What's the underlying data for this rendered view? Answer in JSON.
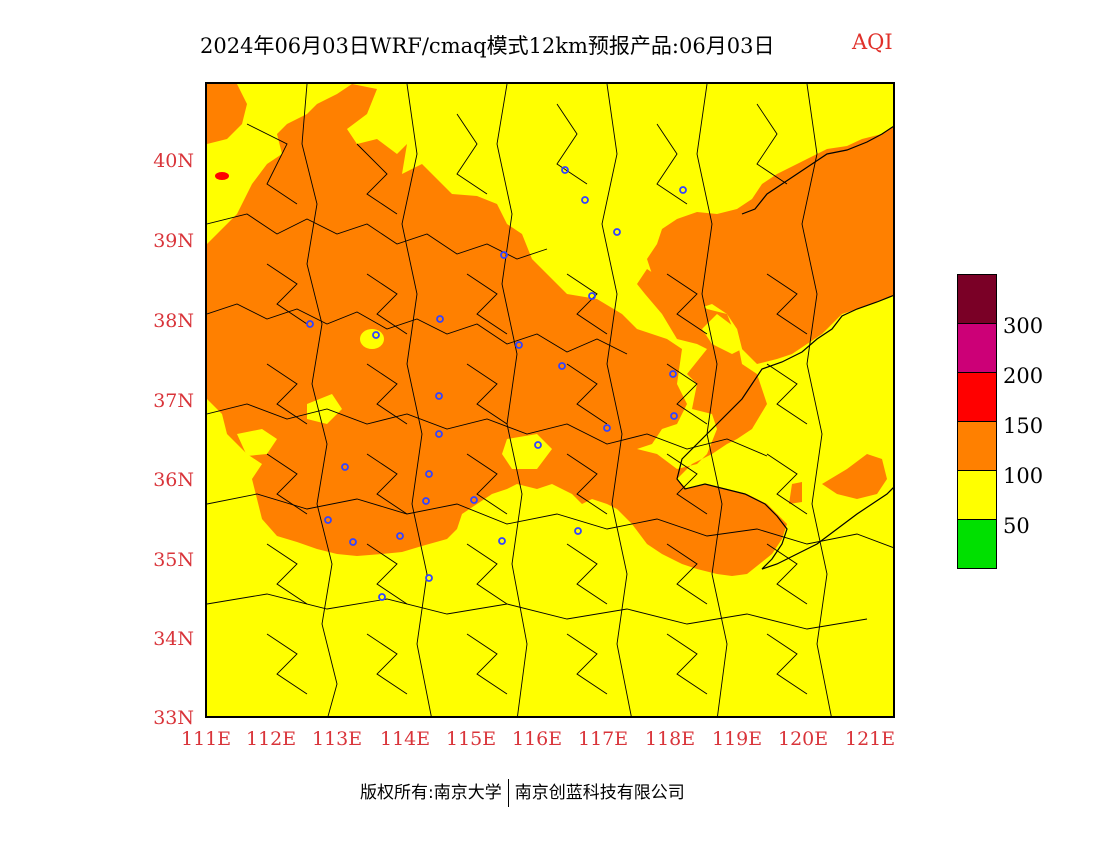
{
  "title": {
    "main": "2024年06月03日WRF/cmaq模式12km预报产品:06月03日",
    "product": "AQI"
  },
  "map": {
    "lon_range": [
      111,
      121.4
    ],
    "lat_range": [
      33,
      40.98
    ],
    "y_ticks": [
      "40N",
      "39N",
      "38N",
      "37N",
      "36N",
      "35N",
      "34N",
      "33N"
    ],
    "x_ticks": [
      "111E",
      "112E",
      "113E",
      "114E",
      "115E",
      "116E",
      "117E",
      "118E",
      "119E",
      "120E",
      "121E"
    ],
    "fill_colors": {
      "good": "#00e000",
      "moderate": "#ffff00",
      "sensitive": "#ff8000",
      "unhealthy": "#ff0000",
      "very_unhealthy": "#cc0077",
      "hazardous": "#7a0026"
    },
    "station_marker_color": "#3344ff"
  },
  "colorbar": {
    "labels": [
      "300",
      "200",
      "150",
      "100",
      "50"
    ],
    "colors": [
      "#7a0026",
      "#cc0077",
      "#ff0000",
      "#ff8000",
      "#ffff00",
      "#00e000"
    ]
  },
  "footer": {
    "left": "版权所有:南京大学",
    "right": "南京创蓝科技有限公司"
  }
}
